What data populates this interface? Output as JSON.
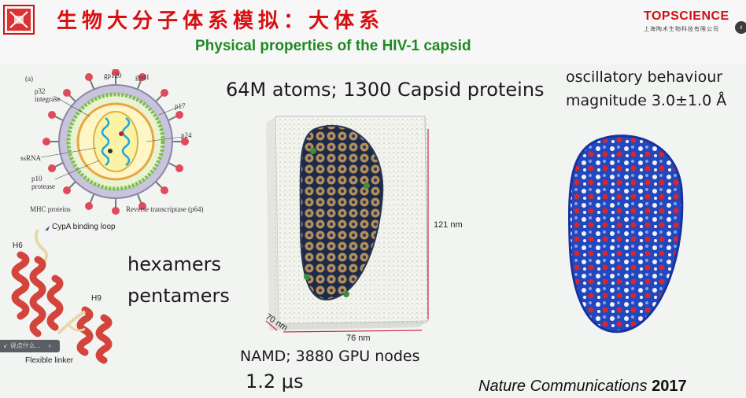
{
  "header": {
    "title_cn": "生物大分子体系模拟：大体系",
    "subtitle": "Physical properties of the HIV-1 capsid",
    "brand": "TOPSCIENCE",
    "brand_sub": "上海陶术生物科技有限公司",
    "side_button": "‹"
  },
  "slide": {
    "atoms_text": "64M atoms; 1300 Capsid proteins",
    "osc_line1": "oscillatory behaviour",
    "osc_line2": "magnitude 3.0±1.0 Å",
    "hexamers": "hexamers",
    "pentamers": "pentamers",
    "namd": "NAMD; 3880 GPU nodes",
    "time": "1.2 μs",
    "journal_name": "Nature Communications",
    "journal_year": "2017"
  },
  "virus_diagram": {
    "panel": "(a)",
    "labels": {
      "gp120": "gp120",
      "gp41": "gp41",
      "p32": "p32",
      "integrase": "integrase",
      "p17": "p17",
      "p24": "p24",
      "ssrna": "ssRNA",
      "p10": "p10",
      "protease": "protease",
      "mhc": "MHC proteins",
      "rt": "Reverse transcriptase (p64)"
    }
  },
  "protein": {
    "cypa": "CypA binding loop",
    "h6": "H6",
    "h9": "H9",
    "linker": "Flexible linker"
  },
  "box": {
    "height": "121 nm",
    "width": "76 nm",
    "depth": "70 nm"
  },
  "floating_bar": {
    "text": "↙ 说点什么...",
    "arrow": "‹"
  },
  "colors": {
    "title_red": "#d80f12",
    "subtitle_green": "#1f8a22"
  }
}
